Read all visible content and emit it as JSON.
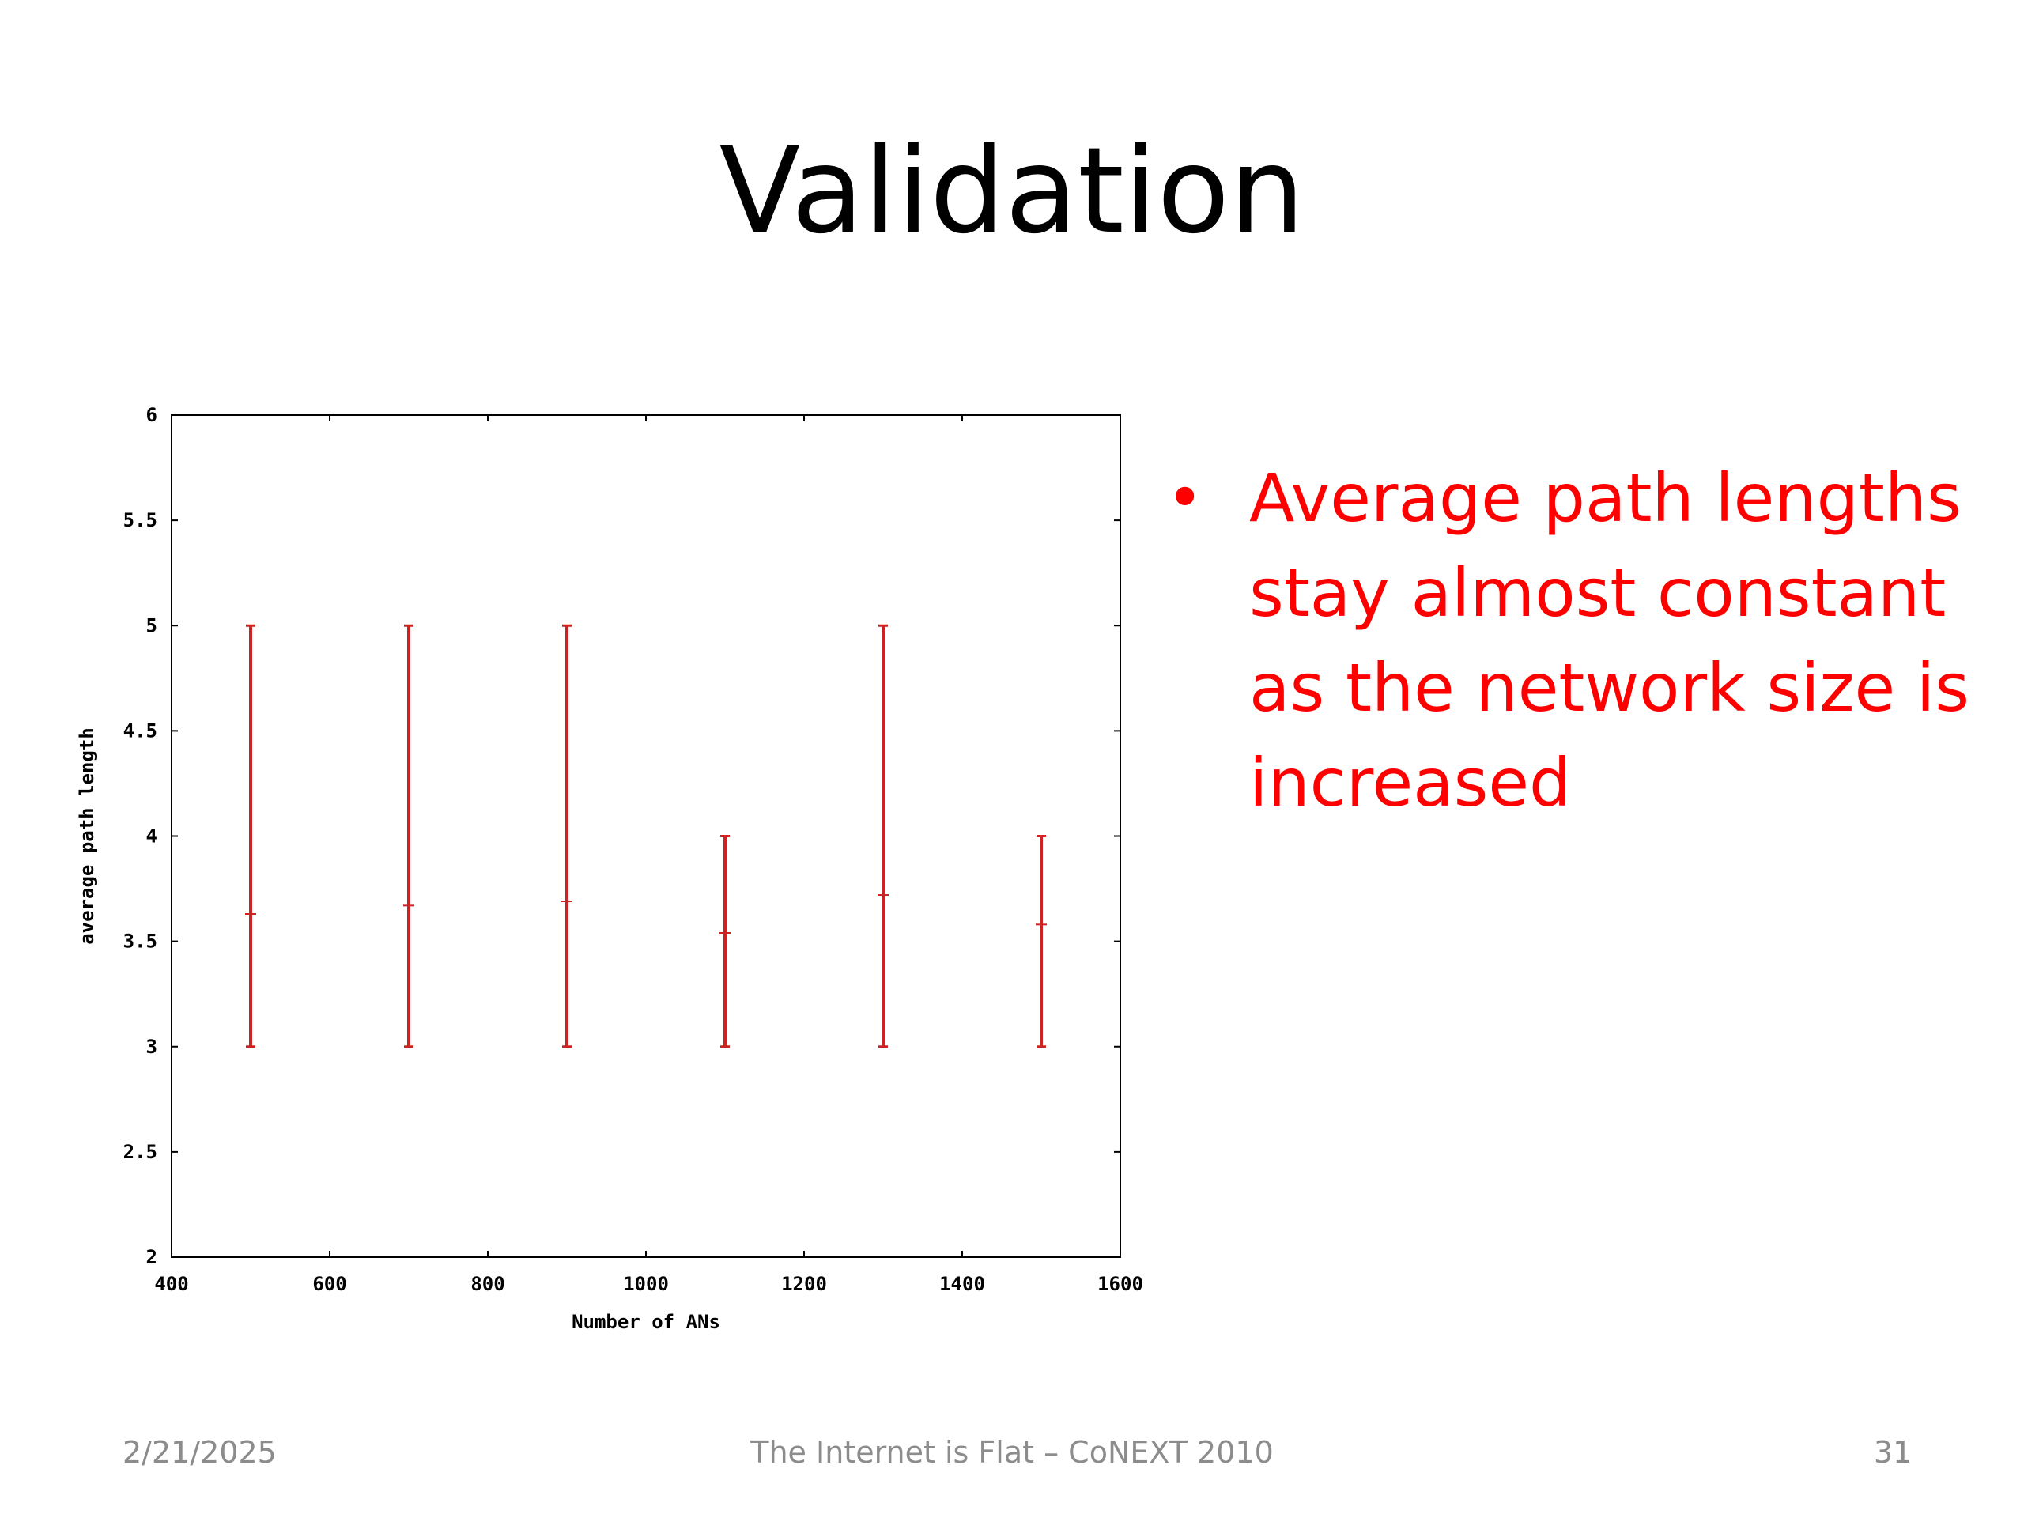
{
  "slide": {
    "title": "Validation",
    "bullet": "Average path lengths stay almost constant as the network size is increased",
    "footer_date": "2/21/2025",
    "footer_center": "The Internet is Flat – CoNEXT 2010",
    "footer_page": "31"
  },
  "colors": {
    "accent": "#ff0000",
    "bar": "#cc2222",
    "footer": "#8c8c8c"
  },
  "chart_data": {
    "type": "scatter",
    "xlabel": "Number of ANs",
    "ylabel": "average path length",
    "xlim": [
      400,
      1600
    ],
    "ylim": [
      2,
      6
    ],
    "xticks": [
      400,
      600,
      800,
      1000,
      1200,
      1400,
      1600
    ],
    "yticks": [
      2,
      2.5,
      3,
      3.5,
      4,
      4.5,
      5,
      5.5,
      6
    ],
    "xtick_labels": [
      "400",
      "600",
      "800",
      "1000",
      "1200",
      "1400",
      "1600"
    ],
    "ytick_labels": [
      "2",
      "2.5",
      "3",
      "3.5",
      "4",
      "4.5",
      "5",
      "5.5",
      "6"
    ],
    "grid": false,
    "legend": "none",
    "points": [
      {
        "x": 500,
        "mean": 3.63,
        "min": 3,
        "max": 5
      },
      {
        "x": 700,
        "mean": 3.67,
        "min": 3,
        "max": 5
      },
      {
        "x": 900,
        "mean": 3.69,
        "min": 3,
        "max": 5
      },
      {
        "x": 1100,
        "mean": 3.54,
        "min": 3,
        "max": 4
      },
      {
        "x": 1300,
        "mean": 3.72,
        "min": 3,
        "max": 5
      },
      {
        "x": 1500,
        "mean": 3.58,
        "min": 3,
        "max": 4
      }
    ]
  }
}
